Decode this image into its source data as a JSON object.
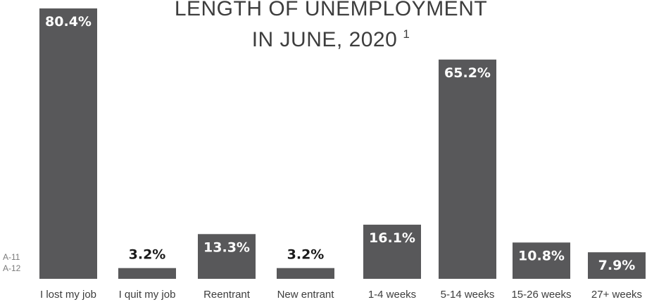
{
  "chart_data": {
    "type": "bar",
    "title_lines": [
      "LENGTH OF UNEMPLOYMENT",
      "IN JUNE, 2020"
    ],
    "title_footnote": "1",
    "side_notes": [
      "A-11",
      "A-12"
    ],
    "categories": [
      "I lost my job",
      "I quit my job",
      "Reentrant",
      "New entrant",
      "1-4 weeks",
      "5-14 weeks",
      "15-26 weeks",
      "27+ weeks"
    ],
    "values": [
      80.4,
      3.2,
      13.3,
      3.2,
      16.1,
      65.2,
      10.8,
      7.9
    ],
    "value_labels": [
      "80.4%",
      "3.2%",
      "13.3%",
      "3.2%",
      "16.1%",
      "65.2%",
      "10.8%",
      "7.9%"
    ],
    "bar_color": "#58585a",
    "inside_label_color": "#ffffff",
    "outside_label_color": "#1a1a1a"
  }
}
